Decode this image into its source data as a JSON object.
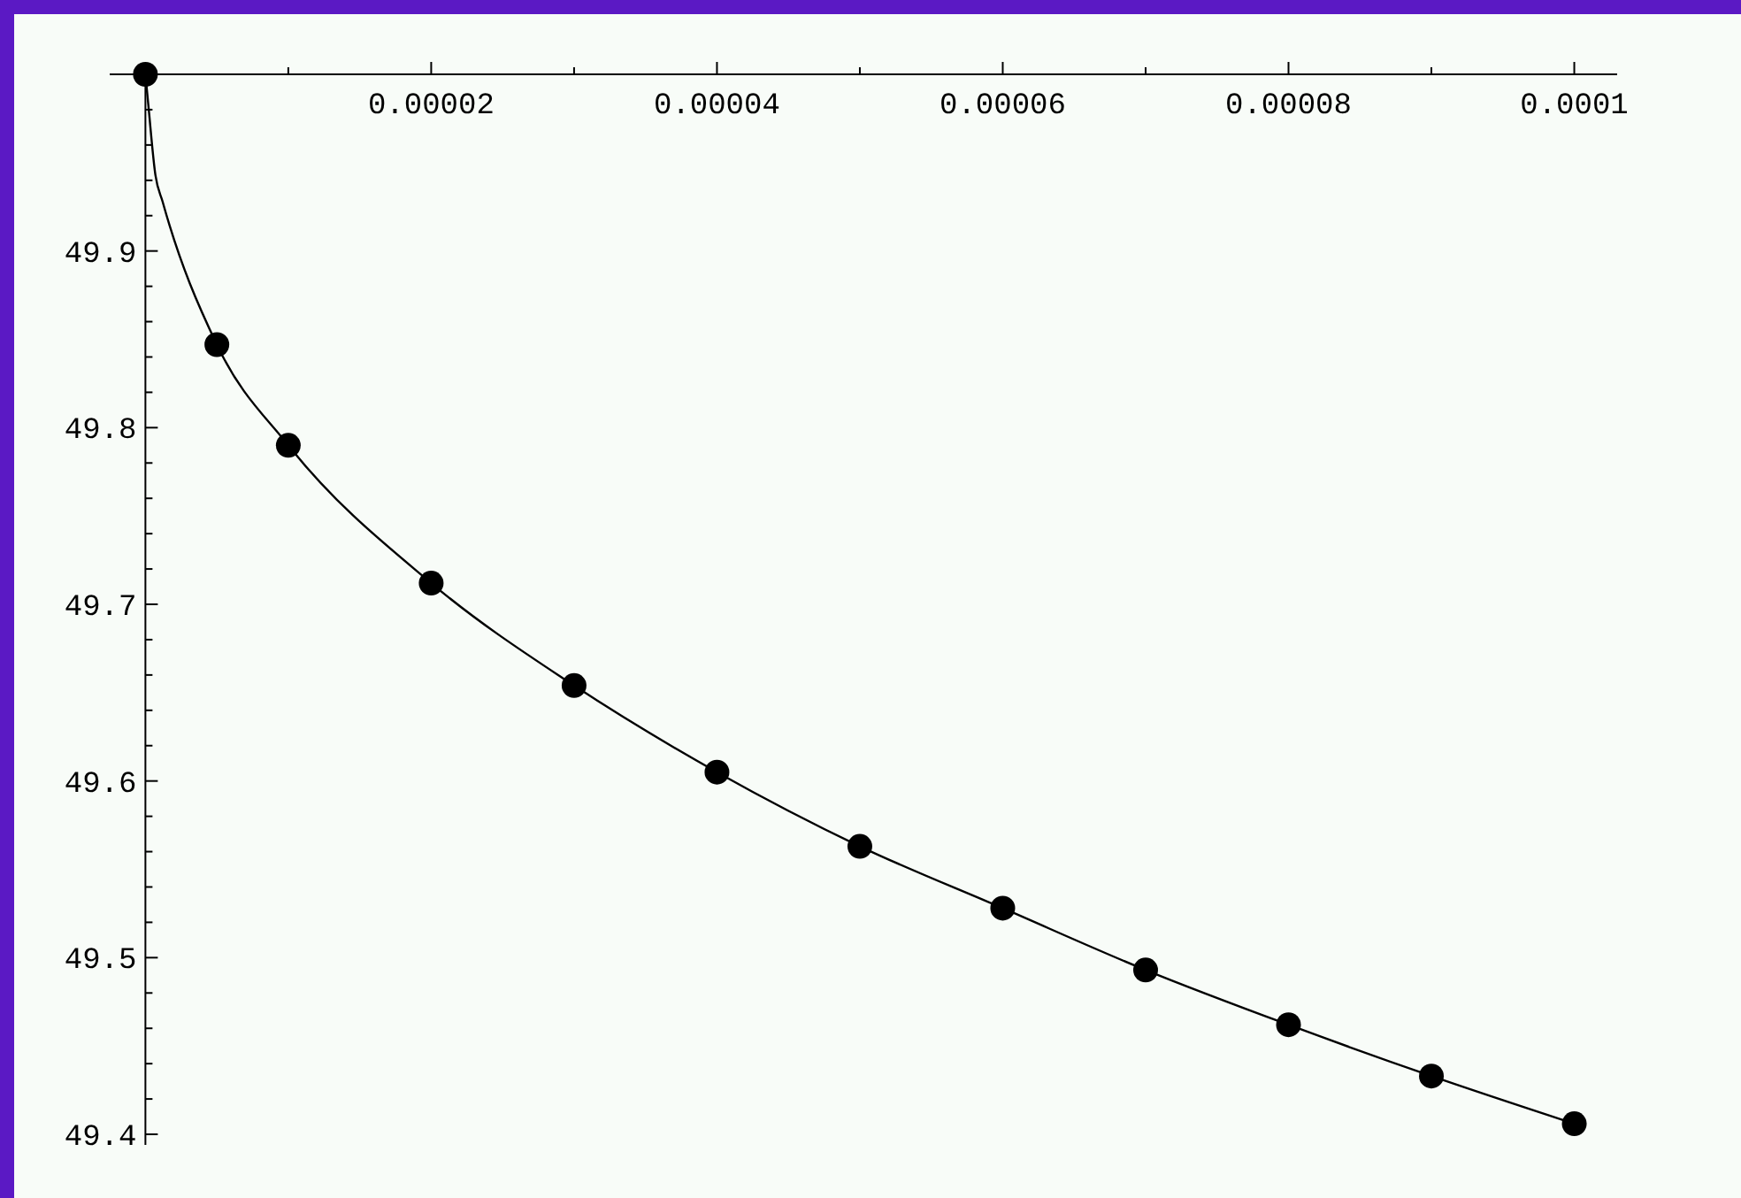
{
  "chart_data": {
    "type": "scatter",
    "xlim": [
      -2.5e-06,
      0.000103
    ],
    "ylim": [
      49.394,
      50.0
    ],
    "xticks": [
      {
        "value": 1e-05,
        "label": null
      },
      {
        "value": 2e-05,
        "label": "0.00002"
      },
      {
        "value": 3e-05,
        "label": null
      },
      {
        "value": 4e-05,
        "label": "0.00004"
      },
      {
        "value": 5e-05,
        "label": null
      },
      {
        "value": 6e-05,
        "label": "0.00006"
      },
      {
        "value": 7e-05,
        "label": null
      },
      {
        "value": 8e-05,
        "label": "0.00008"
      },
      {
        "value": 9e-05,
        "label": null
      },
      0.0001
    ],
    "yticks": [
      49.4,
      {
        "value": 49.42,
        "label": null
      },
      {
        "value": 49.44,
        "label": null
      },
      {
        "value": 49.46,
        "label": null
      },
      {
        "value": 49.48,
        "label": null
      },
      49.5,
      {
        "value": 49.52,
        "label": null
      },
      {
        "value": 49.54,
        "label": null
      },
      {
        "value": 49.56,
        "label": null
      },
      {
        "value": 49.58,
        "label": null
      },
      49.6,
      {
        "value": 49.62,
        "label": null
      },
      {
        "value": 49.64,
        "label": null
      },
      {
        "value": 49.66,
        "label": null
      },
      {
        "value": 49.68,
        "label": null
      },
      49.7,
      {
        "value": 49.72,
        "label": null
      },
      {
        "value": 49.74,
        "label": null
      },
      {
        "value": 49.76,
        "label": null
      },
      {
        "value": 49.78,
        "label": null
      },
      49.8,
      {
        "value": 49.82,
        "label": null
      },
      {
        "value": 49.84,
        "label": null
      },
      {
        "value": 49.86,
        "label": null
      },
      {
        "value": 49.88,
        "label": null
      },
      49.9,
      {
        "value": 49.92,
        "label": null
      },
      {
        "value": 49.94,
        "label": null
      },
      {
        "value": 49.96,
        "label": null
      },
      {
        "value": 49.98,
        "label": null
      }
    ],
    "grid": false,
    "series": [
      {
        "type": "line",
        "color": "#000000",
        "marker": "none",
        "line_style": "solid",
        "x": [
          0,
          2e-07,
          7e-07,
          1.2e-06,
          5e-06,
          1e-05,
          2e-05,
          3e-05,
          4e-05,
          5e-05,
          6e-05,
          7e-05,
          8e-05,
          9e-05,
          0.0001
        ],
        "values": [
          50.0,
          49.983,
          49.943,
          49.928,
          49.847,
          49.79,
          49.712,
          49.654,
          49.605,
          49.563,
          49.528,
          49.493,
          49.462,
          49.433,
          49.406
        ]
      },
      {
        "color": "#000000",
        "marker": "circle",
        "x": [
          0,
          5e-06,
          1e-05,
          2e-05,
          3e-05,
          4e-05,
          5e-05,
          6e-05,
          7e-05,
          8e-05,
          9e-05,
          0.0001
        ],
        "values": [
          50.0,
          49.847,
          49.79,
          49.712,
          49.654,
          49.605,
          49.563,
          49.528,
          49.493,
          49.462,
          49.433,
          49.406
        ]
      }
    ]
  }
}
